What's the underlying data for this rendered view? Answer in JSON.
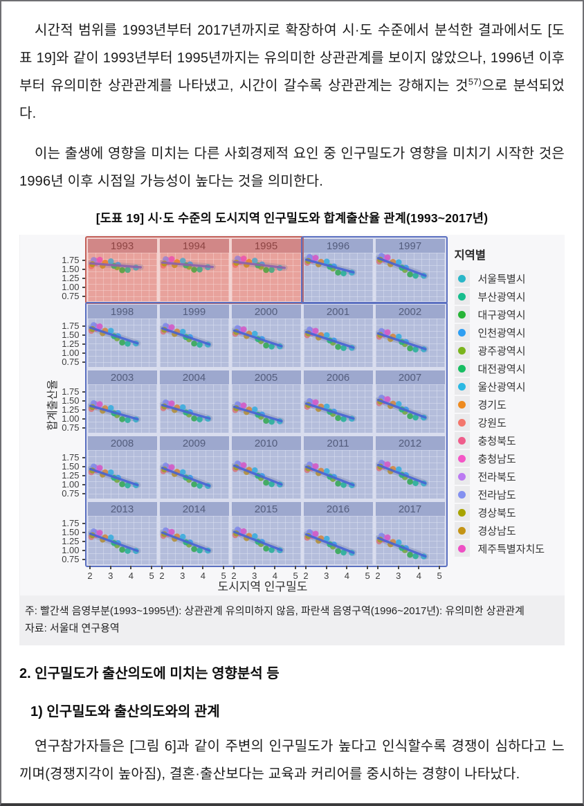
{
  "page": {
    "paragraph1": {
      "text": "시간적 범위를 1993년부터 2017년까지로 확장하여 시·도 수준에서 분석한 결과에서도 [도표 19]와 같이 1993년부터 1995년까지는 유의미한 상관관계를 보이지 않았으나, 1996년 이후부터 유의미한 상관관계를 나타냈고, 시간이 갈수록 상관관계는 강해지는 것",
      "footnote_ref": "57)",
      "text_after": "으로 분석되었다."
    },
    "paragraph2": "이는 출생에 영향을 미치는 다른 사회경제적 요인 중 인구밀도가 영향을 미치기 시작한 것은 1996년 이후 시점일 가능성이 높다는 것을 의미한다.",
    "figure_caption": "[도표 19] 시·도 수준의 도시지역 인구밀도와 합계출산율 관계(1993~2017년)",
    "note_line1": "주: 빨간색 음영부분(1993~1995년): 상관관계 유의미하지 않음, 파란색 음영구역(1996~2017년): 유의미한 상관관계",
    "note_line2": "자료: 서울대 연구용역",
    "section_heading": "2. 인구밀도가 출산의도에 미치는 영향분석 등",
    "subsection_heading": "1) 인구밀도와 출산의도와의 관계",
    "paragraph3": "연구참가자들은 [그림 6]과 같이 주변의 인구밀도가 높다고 인식할수록 경쟁이 심하다고 느끼며(경쟁지각이 높아짐), 결혼·출산보다는 교육과 커리어를 중시하는 경향이 나타났다."
  },
  "chart_data": {
    "type": "scatter",
    "title": "[도표 19] 시·도 수준의 도시지역 인구밀도와 합계출산율 관계(1993~2017년)",
    "xlabel": "도시지역 인구밀도",
    "ylabel": "합계출산율",
    "legend_title": "지역별",
    "facet_grid": [
      [
        1993,
        1994,
        1995,
        1996,
        1997
      ],
      [
        1998,
        1999,
        2000,
        2001,
        2002
      ],
      [
        2003,
        2004,
        2005,
        2006,
        2007
      ],
      [
        2008,
        2009,
        2010,
        2011,
        2012
      ],
      [
        2013,
        2014,
        2015,
        2016,
        2017
      ]
    ],
    "x_ticks": [
      "2",
      "3",
      "4",
      "5"
    ],
    "y_ticks": [
      "1.75",
      "1.50",
      "1.25",
      "1.00",
      "0.75"
    ],
    "x_range": [
      1.88,
      5.25
    ],
    "y_range": [
      0.62,
      1.95
    ],
    "grid": true,
    "legend_position": "right",
    "shaded_regions": [
      {
        "years": "1993~1995",
        "color_name": "빨간색 음영부분",
        "meaning": "상관관계 유의미하지 않음",
        "fill": "#e7706426",
        "border": "#c25f58"
      },
      {
        "years": "1996~2017",
        "color_name": "파란색 음영구역",
        "meaning": "유의미한 상관관계",
        "fill": "#7a8ccd24",
        "border": "#5a6fc0"
      }
    ],
    "regions": [
      {
        "name": "서울특별시",
        "color": "#29b6c8",
        "x": 4.22,
        "dy": -0.02
      },
      {
        "name": "부산광역시",
        "color": "#16bd8d",
        "x": 3.82,
        "dy": -0.1
      },
      {
        "name": "대구광역시",
        "color": "#27b437",
        "x": 3.55,
        "dy": -0.12
      },
      {
        "name": "인천광역시",
        "color": "#2e9ef2",
        "x": 3.35,
        "dy": 0.02
      },
      {
        "name": "광주광역시",
        "color": "#7ab41d",
        "x": 3.3,
        "dy": -0.05
      },
      {
        "name": "대전광역시",
        "color": "#17bd62",
        "x": 3.15,
        "dy": -0.02
      },
      {
        "name": "울산광역시",
        "color": "#2bb8e3",
        "x": 3.0,
        "dy": 0.1
      },
      {
        "name": "경기도",
        "color": "#ee8a1f",
        "x": 2.72,
        "dy": 0.05
      },
      {
        "name": "강원도",
        "color": "#f3766c",
        "x": 2.05,
        "dy": -0.08
      },
      {
        "name": "충청북도",
        "color": "#ef5d8b",
        "x": 2.28,
        "dy": 0.02
      },
      {
        "name": "충청남도",
        "color": "#f455c6",
        "x": 2.22,
        "dy": 0.09
      },
      {
        "name": "전라북도",
        "color": "#bb79f2",
        "x": 2.38,
        "dy": 0.06
      },
      {
        "name": "전라남도",
        "color": "#8390f0",
        "x": 2.16,
        "dy": 0.1
      },
      {
        "name": "경상북도",
        "color": "#a8a400",
        "x": 2.1,
        "dy": -0.02
      },
      {
        "name": "경상남도",
        "color": "#c49415",
        "x": 2.6,
        "dy": -0.04
      },
      {
        "name": "제주특별자치도",
        "color": "#ee4fc4",
        "x": 2.46,
        "dy": 0.12
      }
    ],
    "trend_lines_y_at_x2_and_x425": {
      "1993": [
        1.66,
        1.56
      ],
      "1994": [
        1.68,
        1.57
      ],
      "1995": [
        1.7,
        1.55
      ],
      "1996": [
        1.76,
        1.42
      ],
      "1997": [
        1.8,
        1.33
      ],
      "1998": [
        1.7,
        1.28
      ],
      "1999": [
        1.68,
        1.25
      ],
      "2000": [
        1.62,
        1.2
      ],
      "2001": [
        1.58,
        1.16
      ],
      "2002": [
        1.54,
        1.12
      ],
      "2003": [
        1.36,
        1.0
      ],
      "2004": [
        1.38,
        1.02
      ],
      "2005": [
        1.33,
        0.95
      ],
      "2006": [
        1.42,
        1.02
      ],
      "2007": [
        1.52,
        1.05
      ],
      "2008": [
        1.43,
        1.0
      ],
      "2009": [
        1.46,
        0.98
      ],
      "2010": [
        1.52,
        1.02
      ],
      "2011": [
        1.49,
        1.0
      ],
      "2012": [
        1.54,
        1.05
      ],
      "2013": [
        1.46,
        1.0
      ],
      "2014": [
        1.49,
        1.01
      ],
      "2015": [
        1.51,
        1.02
      ],
      "2016": [
        1.44,
        0.95
      ],
      "2017": [
        1.34,
        0.85
      ]
    },
    "colors": {
      "trend_blue": "#3757d6",
      "trend_red_period": "#6b5ec6",
      "strip_blue": "#a9b2cf",
      "strip_red": "#c99093",
      "panel_blue": "#c7cee0",
      "panel_red": "#e8b4b0"
    }
  }
}
